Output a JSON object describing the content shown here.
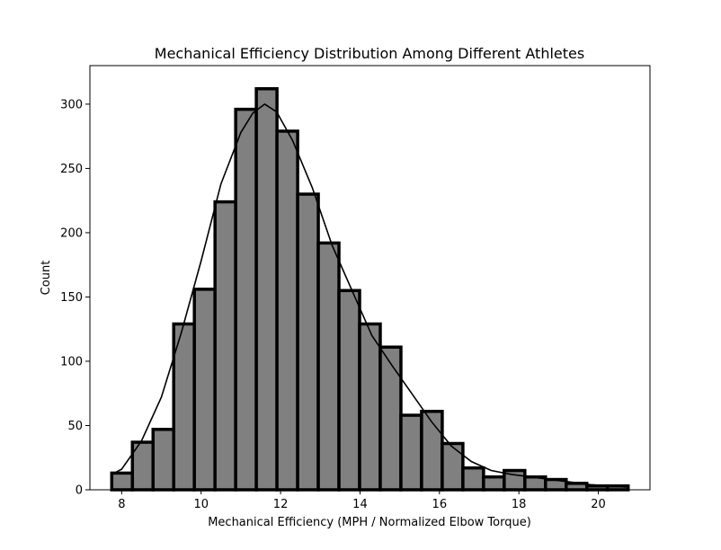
{
  "chart_data": {
    "type": "bar",
    "title": "Mechanical Efficiency Distribution Among Different Athletes",
    "xlabel": "Mechanical Efficiency (MPH / Normalized Elbow Torque)",
    "ylabel": "Count",
    "xlim": [
      7.2,
      21.3
    ],
    "ylim": [
      0,
      330
    ],
    "xticks": [
      8,
      10,
      12,
      14,
      16,
      18,
      20
    ],
    "yticks": [
      0,
      50,
      100,
      150,
      200,
      250,
      300
    ],
    "bin_start": 7.75,
    "bin_width": 0.52,
    "counts": [
      13,
      37,
      47,
      129,
      156,
      224,
      296,
      312,
      279,
      230,
      192,
      155,
      129,
      111,
      58,
      61,
      36,
      17,
      10,
      15,
      10,
      8,
      5,
      3,
      3
    ],
    "kde": {
      "x": [
        7.75,
        8.0,
        8.5,
        9.0,
        9.5,
        10.0,
        10.5,
        11.0,
        11.3,
        11.6,
        11.9,
        12.3,
        12.8,
        13.3,
        13.8,
        14.3,
        14.8,
        15.3,
        15.8,
        16.3,
        16.8,
        17.3,
        17.8,
        18.3,
        18.8,
        19.3,
        19.8,
        20.3,
        20.7
      ],
      "y": [
        12,
        16,
        38,
        72,
        122,
        178,
        238,
        278,
        293,
        300,
        294,
        272,
        235,
        190,
        155,
        120,
        97,
        75,
        53,
        34,
        22,
        15,
        12,
        10,
        8,
        6,
        4,
        3,
        2
      ]
    },
    "bar_color": "#808080",
    "edge_color": "#000000",
    "line_color": "#000000",
    "grid": false,
    "legend": "none"
  }
}
